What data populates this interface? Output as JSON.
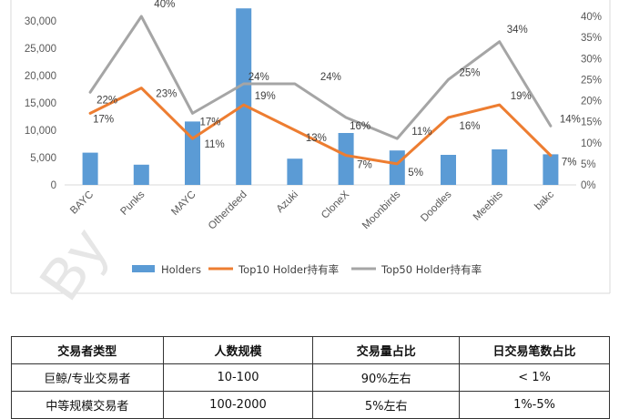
{
  "chart_data": {
    "type": "bar+line",
    "categories": [
      "BAYC",
      "Punks",
      "MAYC",
      "Otherdeed",
      "Azuki",
      "CloneX",
      "Moonbirds",
      "Doodles",
      "Meebits",
      "bakc"
    ],
    "series": [
      {
        "name": "Holders",
        "kind": "bar",
        "axis": "left",
        "color": "#5b9bd5",
        "values": [
          5900,
          3700,
          11600,
          32300,
          4800,
          9500,
          6300,
          5500,
          6500,
          5600
        ]
      },
      {
        "name": "Top10 Holder持有率",
        "kind": "line",
        "axis": "right",
        "color": "#ed7d31",
        "values": [
          17,
          23,
          11,
          19,
          13,
          7,
          5,
          16,
          19,
          7
        ],
        "labels": [
          "17%",
          "23%",
          "11%",
          "19%",
          "13%",
          "7%",
          "5%",
          "16%",
          "19%",
          "7%"
        ]
      },
      {
        "name": "Top50 Holder持有率",
        "kind": "line",
        "axis": "right",
        "color": "#a5a5a5",
        "values": [
          22,
          40,
          17,
          24,
          24,
          16,
          11,
          25,
          34,
          14
        ],
        "labels": [
          "22%",
          "40%",
          "17%",
          "24%",
          "24%",
          "16%",
          "11%",
          "25%",
          "34%",
          "14%"
        ]
      }
    ],
    "left_axis": {
      "ticks": [
        "0",
        "5,000",
        "10,000",
        "15,000",
        "20,000",
        "25,000",
        "30,000"
      ],
      "max": 30000
    },
    "right_axis": {
      "ticks": [
        "0%",
        "5%",
        "10%",
        "15%",
        "20%",
        "25%",
        "30%",
        "35%",
        "40%"
      ],
      "max": 40
    },
    "legend_position": "bottom",
    "grid": false
  },
  "watermark": "By",
  "table": {
    "headers": [
      "交易者类型",
      "人数规模",
      "交易量占比",
      "日交易笔数占比"
    ],
    "rows": [
      [
        "巨鲸/专业交易者",
        "10-100",
        "90%左右",
        "< 1%"
      ],
      [
        "中等规模交易者",
        "100-2000",
        "5%左右",
        "1%-5%"
      ]
    ]
  }
}
